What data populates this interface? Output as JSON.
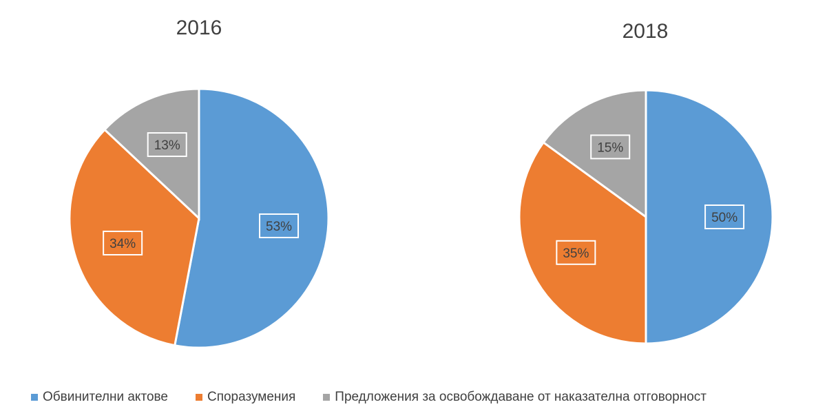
{
  "chart_data": [
    {
      "type": "pie",
      "title": "2016",
      "categories": [
        "Обвинителни актове",
        "Споразумения",
        "Предложения за освобождаване от наказателна отговорност"
      ],
      "values": [
        53,
        34,
        13
      ],
      "labels": [
        "53%",
        "34%",
        "13%"
      ],
      "colors": [
        "#5b9bd5",
        "#ed7d31",
        "#a5a5a5"
      ]
    },
    {
      "type": "pie",
      "title": "2018",
      "categories": [
        "Обвинителни актове",
        "Споразумения",
        "Предложения за освобождаване от наказателна отговорност"
      ],
      "values": [
        50,
        35,
        15
      ],
      "labels": [
        "50%",
        "35%",
        "15%"
      ],
      "colors": [
        "#5b9bd5",
        "#ed7d31",
        "#a5a5a5"
      ]
    }
  ],
  "legend": {
    "placement": "bottom",
    "items": [
      {
        "label": "Обвинителни актове",
        "color": "#5b9bd5"
      },
      {
        "label": "Споразумения",
        "color": "#ed7d31"
      },
      {
        "label": "Предложения за освобождаване от наказателна отговорност",
        "color": "#a5a5a5"
      }
    ]
  }
}
